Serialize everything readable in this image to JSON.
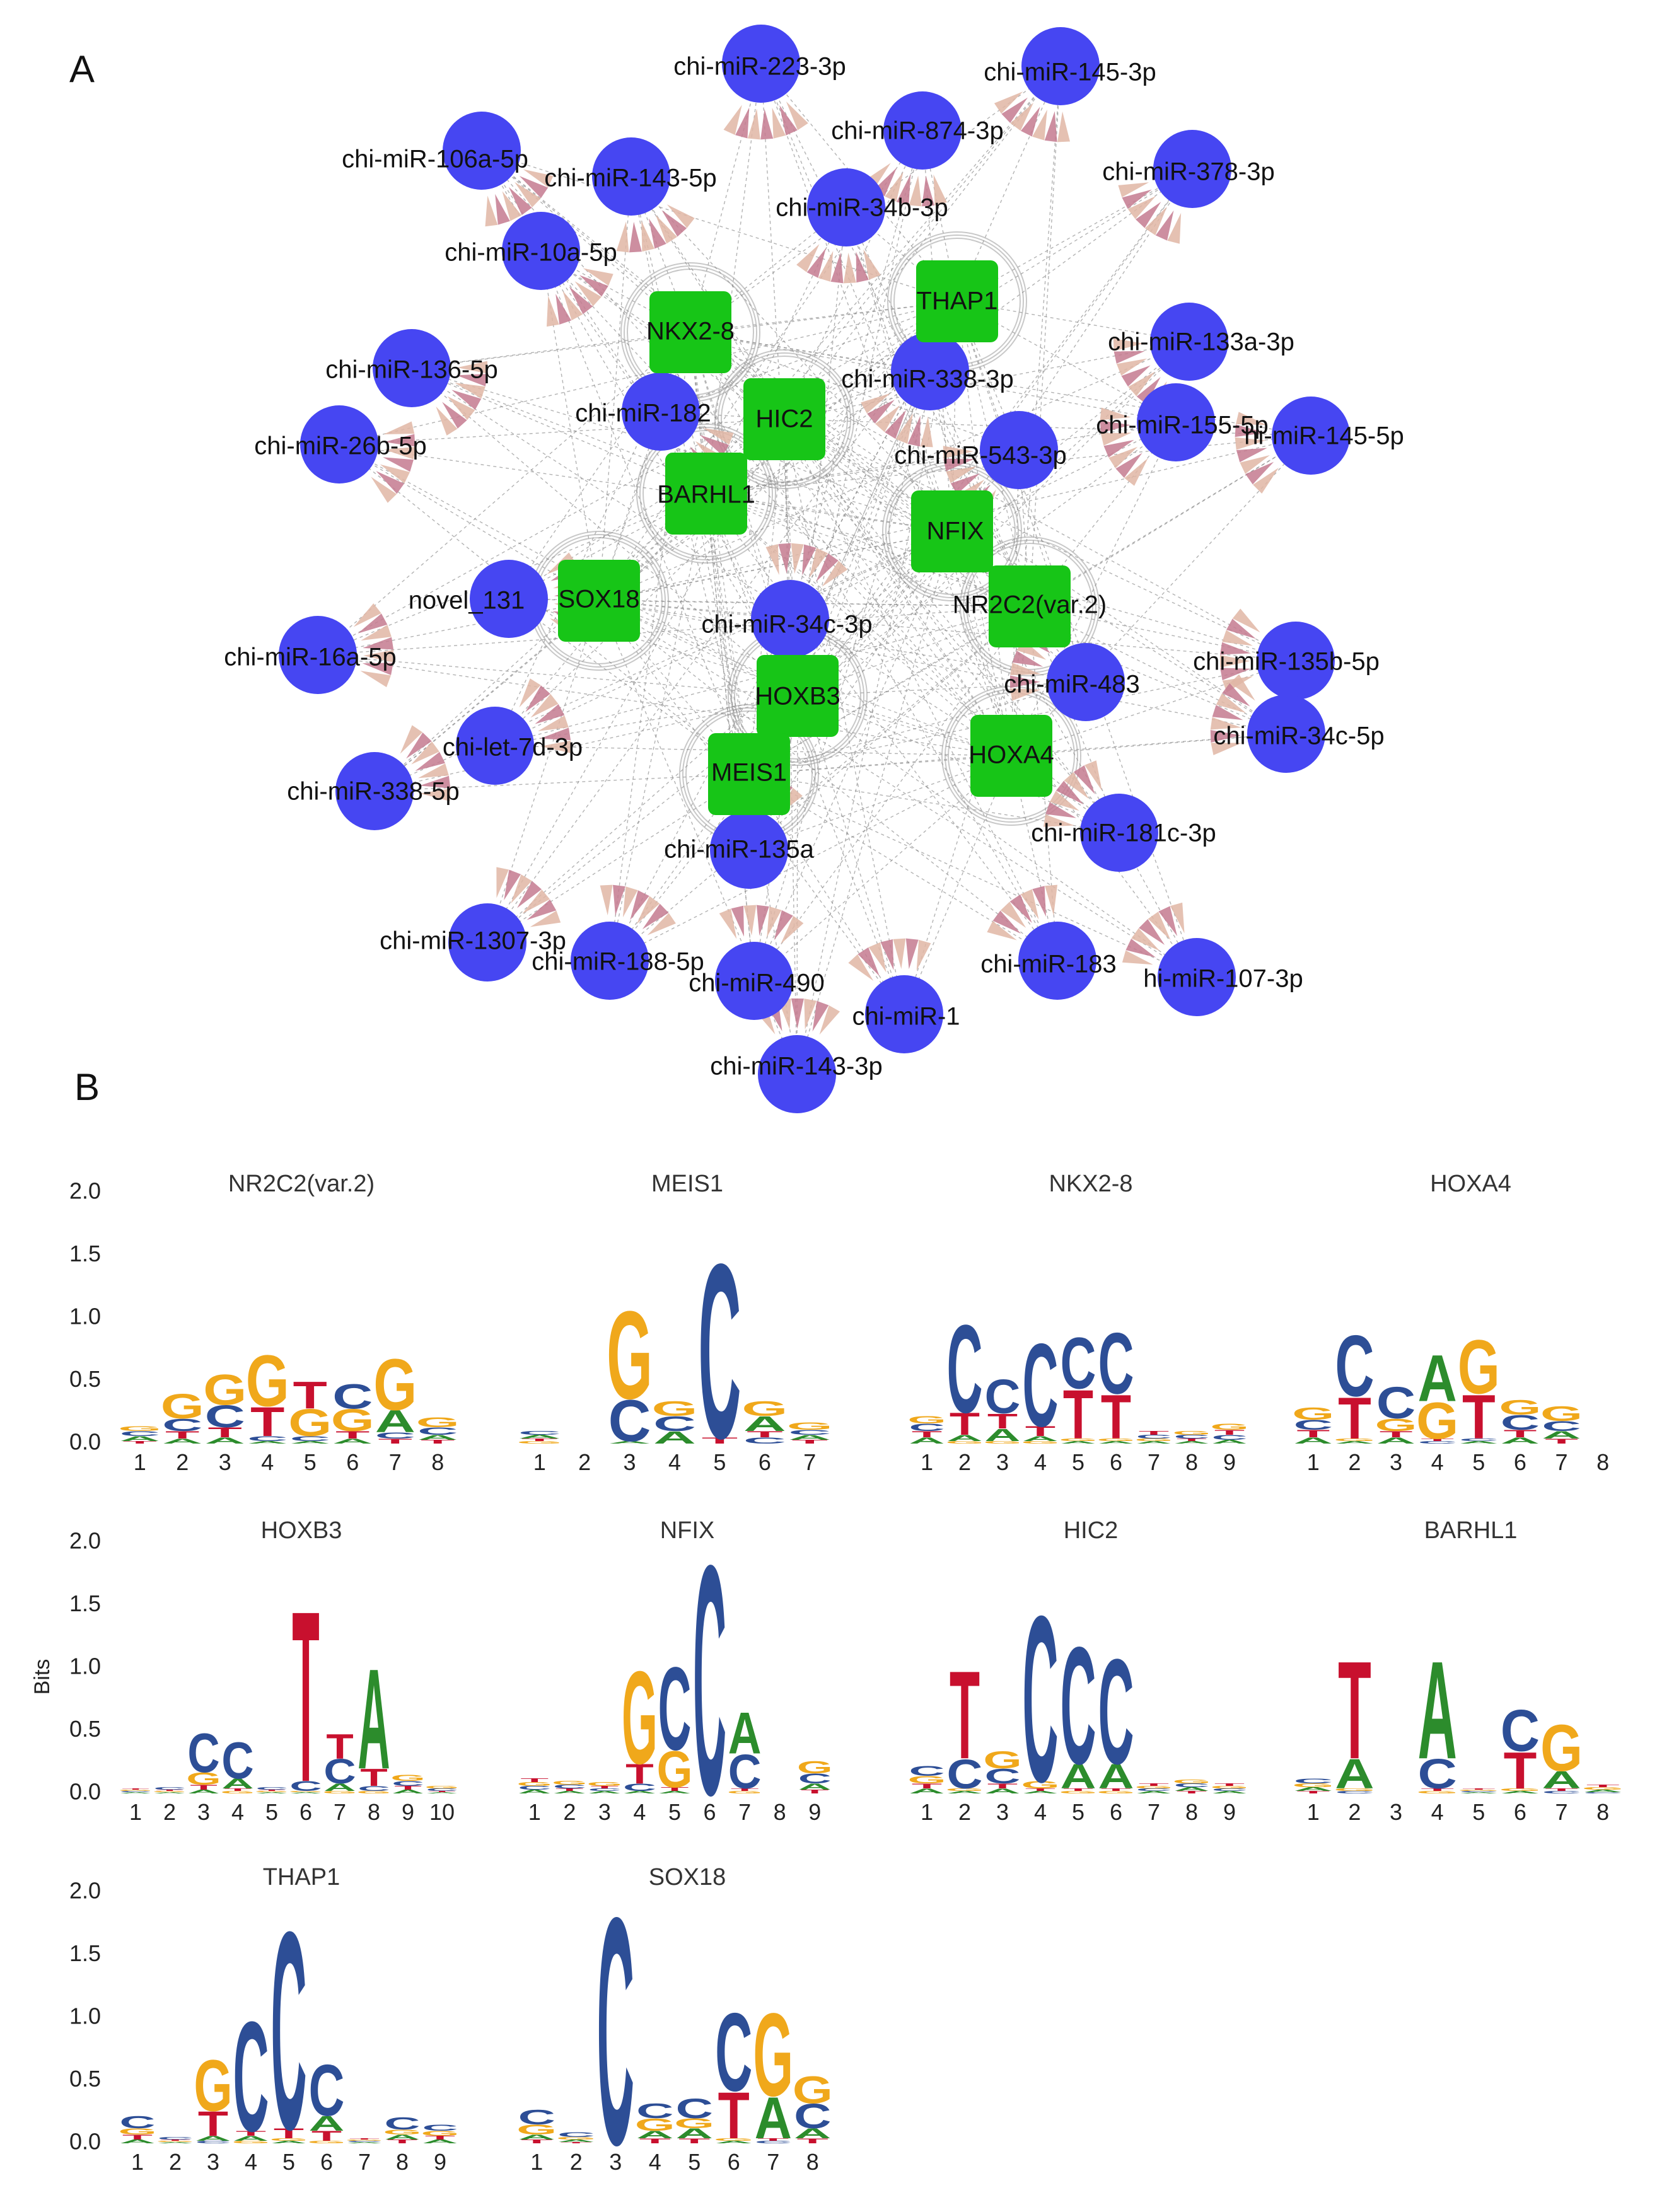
{
  "panels": {
    "a": "A",
    "b": "B"
  },
  "colors": {
    "mirna_node": "#4646f2",
    "tf_node": "#17c517",
    "edge": "#8a8a8a",
    "arrow": "#c47a8f",
    "A": "#2c8c2c",
    "C": "#2d4e96",
    "G": "#f0a81b",
    "T": "#c8102e"
  },
  "network": {
    "tf_nodes": [
      {
        "id": "NKX2-8"
      },
      {
        "id": "THAP1"
      },
      {
        "id": "HIC2"
      },
      {
        "id": "BARHL1"
      },
      {
        "id": "NFIX"
      },
      {
        "id": "SOX18"
      },
      {
        "id": "NR2C2(var.2)"
      },
      {
        "id": "HOXB3"
      },
      {
        "id": "MEIS1"
      },
      {
        "id": "HOXA4"
      }
    ],
    "mirna_nodes": [
      {
        "id": "chi-miR-223-3p"
      },
      {
        "id": "chi-miR-145-3p"
      },
      {
        "id": "chi-miR-874-3p"
      },
      {
        "id": "chi-miR-106a-5p"
      },
      {
        "id": "chi-miR-143-5p"
      },
      {
        "id": "chi-miR-378-3p"
      },
      {
        "id": "chi-miR-34b-3p"
      },
      {
        "id": "chi-miR-10a-5p"
      },
      {
        "id": "chi-miR-133a-3p"
      },
      {
        "id": "chi-miR-136-5p"
      },
      {
        "id": "chi-miR-338-3p"
      },
      {
        "id": "chi-miR-182"
      },
      {
        "id": "chi-miR-155-5p"
      },
      {
        "id": "chi-miR-145-5p",
        "text": "hi-miR-145-5p"
      },
      {
        "id": "chi-miR-26b-5p"
      },
      {
        "id": "chi-miR-543-3p"
      },
      {
        "id": "novel_131"
      },
      {
        "id": "chi-miR-34c-3p"
      },
      {
        "id": "chi-miR-16a-5p"
      },
      {
        "id": "chi-miR-135b-5p"
      },
      {
        "id": "chi-miR-483"
      },
      {
        "id": "chi-let-7d-3p"
      },
      {
        "id": "chi-miR-34c-5p"
      },
      {
        "id": "chi-miR-338-5p"
      },
      {
        "id": "chi-miR-135a"
      },
      {
        "id": "chi-miR-181c-3p"
      },
      {
        "id": "chi-miR-1307-3p"
      },
      {
        "id": "chi-miR-188-5p"
      },
      {
        "id": "chi-miR-183"
      },
      {
        "id": "chi-miR-107-3p",
        "text": "hi-miR-107-3p"
      },
      {
        "id": "chi-miR-490"
      },
      {
        "id": "chi-miR-1"
      },
      {
        "id": "chi-miR-143-3p"
      }
    ]
  },
  "logos": {
    "y_axis_label": "Bits",
    "y_ticks": [
      "0.0",
      "0.5",
      "1.0",
      "1.5",
      "2.0"
    ],
    "y_max": 2.0,
    "motifs": [
      {
        "name": "NR2C2(var.2)",
        "positions": [
          {
            "A": 0.04,
            "C": 0.04,
            "G": 0.04,
            "T": 0.02
          },
          {
            "A": 0.04,
            "C": 0.1,
            "G": 0.2,
            "T": 0.06
          },
          {
            "A": 0.05,
            "C": 0.18,
            "G": 0.25,
            "T": 0.08
          },
          {
            "A": 0.02,
            "C": 0.04,
            "G": 0.42,
            "T": 0.24
          },
          {
            "A": 0.02,
            "C": 0.04,
            "G": 0.22,
            "T": 0.22
          },
          {
            "A": 0.04,
            "C": 0.2,
            "G": 0.18,
            "T": 0.06
          },
          {
            "A": 0.18,
            "C": 0.05,
            "G": 0.42,
            "T": 0.04
          },
          {
            "A": 0.04,
            "C": 0.06,
            "G": 0.08,
            "T": 0.03
          }
        ]
      },
      {
        "name": "MEIS1",
        "positions": [
          {
            "A": 0.03,
            "C": 0.03,
            "G": 0.02,
            "T": 0.02
          },
          {
            "A": 0,
            "C": 0,
            "G": 0,
            "T": 0
          },
          {
            "A": 0.02,
            "C": 0.34,
            "G": 0.72,
            "T": 0
          },
          {
            "A": 0.1,
            "C": 0.12,
            "G": 0.12,
            "T": 0
          },
          {
            "A": 0,
            "C": 1.43,
            "G": 0,
            "T": 0.05
          },
          {
            "A": 0.12,
            "C": 0.05,
            "G": 0.12,
            "T": 0.05
          },
          {
            "A": 0.04,
            "C": 0.04,
            "G": 0.06,
            "T": 0.03
          }
        ]
      },
      {
        "name": "NKX2-8",
        "positions": [
          {
            "A": 0.05,
            "C": 0.06,
            "G": 0.06,
            "T": 0.05
          },
          {
            "A": 0.05,
            "C": 0.72,
            "G": 0.02,
            "T": 0.18
          },
          {
            "A": 0.1,
            "C": 0.28,
            "G": 0.02,
            "T": 0.12
          },
          {
            "A": 0.04,
            "C": 0.68,
            "G": 0.02,
            "T": 0.08
          },
          {
            "A": 0.02,
            "C": 0.42,
            "G": 0.02,
            "T": 0.4
          },
          {
            "A": 0.02,
            "C": 0.5,
            "G": 0.02,
            "T": 0.36
          },
          {
            "A": 0.02,
            "C": 0.03,
            "G": 0.02,
            "T": 0.03
          },
          {
            "A": 0.02,
            "C": 0.03,
            "G": 0.03,
            "T": 0.02
          },
          {
            "A": 0.03,
            "C": 0.04,
            "G": 0.05,
            "T": 0.04
          }
        ]
      },
      {
        "name": "HOXA4",
        "positions": [
          {
            "A": 0.05,
            "C": 0.08,
            "G": 0.1,
            "T": 0.06
          },
          {
            "A": 0.02,
            "C": 0.5,
            "G": 0.02,
            "T": 0.34
          },
          {
            "A": 0.05,
            "C": 0.26,
            "G": 0.1,
            "T": 0.05
          },
          {
            "A": 0.38,
            "C": 0.02,
            "G": 0.3,
            "T": 0.02
          },
          {
            "A": 0.02,
            "C": 0.02,
            "G": 0.44,
            "T": 0.36
          },
          {
            "A": 0.05,
            "C": 0.12,
            "G": 0.12,
            "T": 0.06
          },
          {
            "A": 0.06,
            "C": 0.08,
            "G": 0.12,
            "T": 0.04
          },
          {
            "A": 0,
            "C": 0,
            "G": 0,
            "T": 0
          }
        ]
      },
      {
        "name": "HOXB3",
        "positions": [
          {
            "A": 0.01,
            "C": 0.01,
            "G": 0.01,
            "T": 0.01
          },
          {
            "A": 0.01,
            "C": 0.02,
            "G": 0.01,
            "T": 0.01
          },
          {
            "A": 0.03,
            "C": 0.32,
            "G": 0.1,
            "T": 0.04
          },
          {
            "A": 0.08,
            "C": 0.3,
            "G": 0.02,
            "T": 0.02
          },
          {
            "A": 0.01,
            "C": 0.02,
            "G": 0.01,
            "T": 0.01
          },
          {
            "A": 0.01,
            "C": 0.08,
            "G": 0.01,
            "T": 1.4
          },
          {
            "A": 0.06,
            "C": 0.2,
            "G": 0.02,
            "T": 0.2
          },
          {
            "A": 0.82,
            "C": 0.04,
            "G": 0.02,
            "T": 0.14
          },
          {
            "A": 0.03,
            "C": 0.04,
            "G": 0.05,
            "T": 0.03
          },
          {
            "A": 0.01,
            "C": 0.02,
            "G": 0.02,
            "T": 0.01
          }
        ]
      },
      {
        "name": "NFIX",
        "positions": [
          {
            "A": 0.03,
            "C": 0.03,
            "G": 0.03,
            "T": 0.03
          },
          {
            "A": 0.02,
            "C": 0.03,
            "G": 0.03,
            "T": 0.02
          },
          {
            "A": 0.02,
            "C": 0.02,
            "G": 0.03,
            "T": 0.02
          },
          {
            "A": 0.02,
            "C": 0.06,
            "G": 0.76,
            "T": 0.16
          },
          {
            "A": 0.02,
            "C": 0.68,
            "G": 0.3,
            "T": 0.03
          },
          {
            "A": 0,
            "C": 1.88,
            "G": 0,
            "T": 0
          },
          {
            "A": 0.34,
            "C": 0.28,
            "G": 0.02,
            "T": 0.02
          },
          {
            "A": 0,
            "C": 0,
            "G": 0,
            "T": 0
          },
          {
            "A": 0.05,
            "C": 0.08,
            "G": 0.1,
            "T": 0.03
          }
        ]
      },
      {
        "name": "HIC2",
        "positions": [
          {
            "A": 0.04,
            "C": 0.08,
            "G": 0.06,
            "T": 0.04
          },
          {
            "A": 0.02,
            "C": 0.24,
            "G": 0.02,
            "T": 0.72
          },
          {
            "A": 0.04,
            "C": 0.12,
            "G": 0.14,
            "T": 0.04
          },
          {
            "A": 0.02,
            "C": 1.36,
            "G": 0.06,
            "T": 0.02
          },
          {
            "A": 0.2,
            "C": 0.96,
            "G": 0.02,
            "T": 0.02
          },
          {
            "A": 0.2,
            "C": 0.86,
            "G": 0.02,
            "T": 0.02
          },
          {
            "A": 0.02,
            "C": 0.02,
            "G": 0.02,
            "T": 0.02
          },
          {
            "A": 0.03,
            "C": 0.03,
            "G": 0.03,
            "T": 0.02
          },
          {
            "A": 0.02,
            "C": 0.02,
            "G": 0.02,
            "T": 0.02
          }
        ]
      },
      {
        "name": "BARHL1",
        "positions": [
          {
            "A": 0.03,
            "C": 0.04,
            "G": 0.03,
            "T": 0.02
          },
          {
            "A": 0.24,
            "C": 0.02,
            "G": 0.02,
            "T": 0.8
          },
          {
            "A": 0,
            "C": 0,
            "G": 0,
            "T": 0
          },
          {
            "A": 0.8,
            "C": 0.24,
            "G": 0.02,
            "T": 0.02
          },
          {
            "A": 0.01,
            "C": 0.01,
            "G": 0.01,
            "T": 0.01
          },
          {
            "A": 0.02,
            "C": 0.34,
            "G": 0.02,
            "T": 0.3
          },
          {
            "A": 0.14,
            "C": 0.02,
            "G": 0.38,
            "T": 0.02
          },
          {
            "A": 0.02,
            "C": 0.01,
            "G": 0.02,
            "T": 0.02
          }
        ]
      },
      {
        "name": "THAP1",
        "positions": [
          {
            "A": 0.03,
            "C": 0.1,
            "G": 0.05,
            "T": 0.04
          },
          {
            "A": 0.01,
            "C": 0.02,
            "G": 0.01,
            "T": 0.01
          },
          {
            "A": 0.04,
            "C": 0.02,
            "G": 0.42,
            "T": 0.2
          },
          {
            "A": 0.04,
            "C": 0.9,
            "G": 0.02,
            "T": 0.04
          },
          {
            "A": 0.02,
            "C": 1.62,
            "G": 0.02,
            "T": 0.08
          },
          {
            "A": 0.12,
            "C": 0.42,
            "G": 0.02,
            "T": 0.08
          },
          {
            "A": 0.01,
            "C": 0.01,
            "G": 0.01,
            "T": 0.01
          },
          {
            "A": 0.04,
            "C": 0.1,
            "G": 0.04,
            "T": 0.03
          },
          {
            "A": 0.03,
            "C": 0.05,
            "G": 0.04,
            "T": 0.03
          }
        ]
      },
      {
        "name": "SOX18",
        "positions": [
          {
            "A": 0.04,
            "C": 0.12,
            "G": 0.08,
            "T": 0.03
          },
          {
            "A": 0.02,
            "C": 0.04,
            "G": 0.02,
            "T": 0.01
          },
          {
            "A": 0,
            "C": 1.86,
            "G": 0,
            "T": 0
          },
          {
            "A": 0.06,
            "C": 0.12,
            "G": 0.1,
            "T": 0.04
          },
          {
            "A": 0.08,
            "C": 0.16,
            "G": 0.08,
            "T": 0.04
          },
          {
            "A": 0.02,
            "C": 0.64,
            "G": 0.02,
            "T": 0.38
          },
          {
            "A": 0.34,
            "C": 0.02,
            "G": 0.68,
            "T": 0.02
          },
          {
            "A": 0.08,
            "C": 0.2,
            "G": 0.22,
            "T": 0.04
          }
        ]
      }
    ]
  }
}
